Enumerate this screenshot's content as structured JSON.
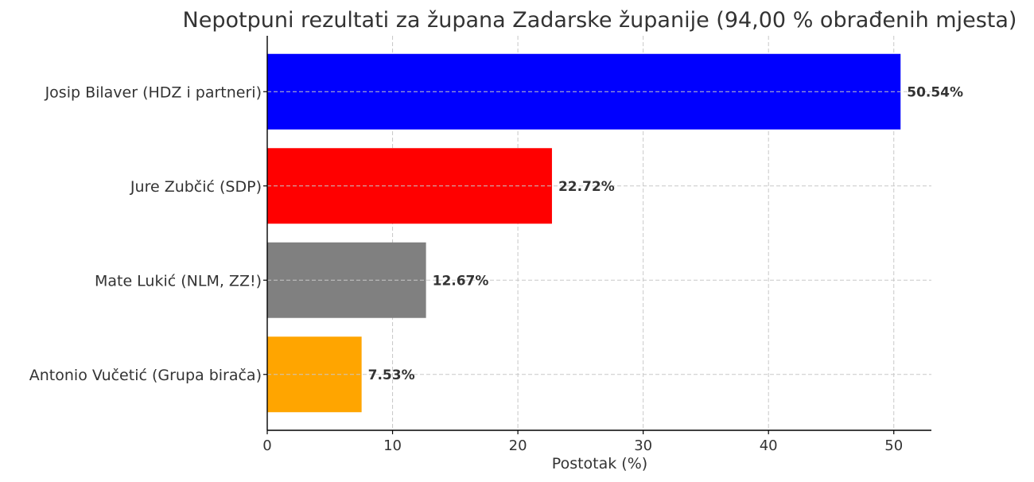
{
  "chart_data": {
    "type": "bar",
    "orientation": "horizontal",
    "title": "Nepotpuni rezultati za župana Zadarske županije (94,00 % obrađenih mjesta)",
    "xlabel": "Postotak (%)",
    "ylabel": "",
    "categories": [
      "Josip Bilaver (HDZ i partneri)",
      "Jure Zubčić (SDP)",
      "Mate Lukić (NLM, ZZ!)",
      "Antonio Vučetić (Grupa birača)"
    ],
    "values": [
      50.54,
      22.72,
      12.67,
      7.53
    ],
    "data_labels": [
      "50.54%",
      "22.72%",
      "12.67%",
      "7.53%"
    ],
    "colors": [
      "#0000ff",
      "#ff0000",
      "#808080",
      "#ffa500"
    ],
    "xlim": [
      0,
      53
    ],
    "xticks": [
      0,
      10,
      20,
      30,
      40,
      50
    ],
    "grid": true
  }
}
